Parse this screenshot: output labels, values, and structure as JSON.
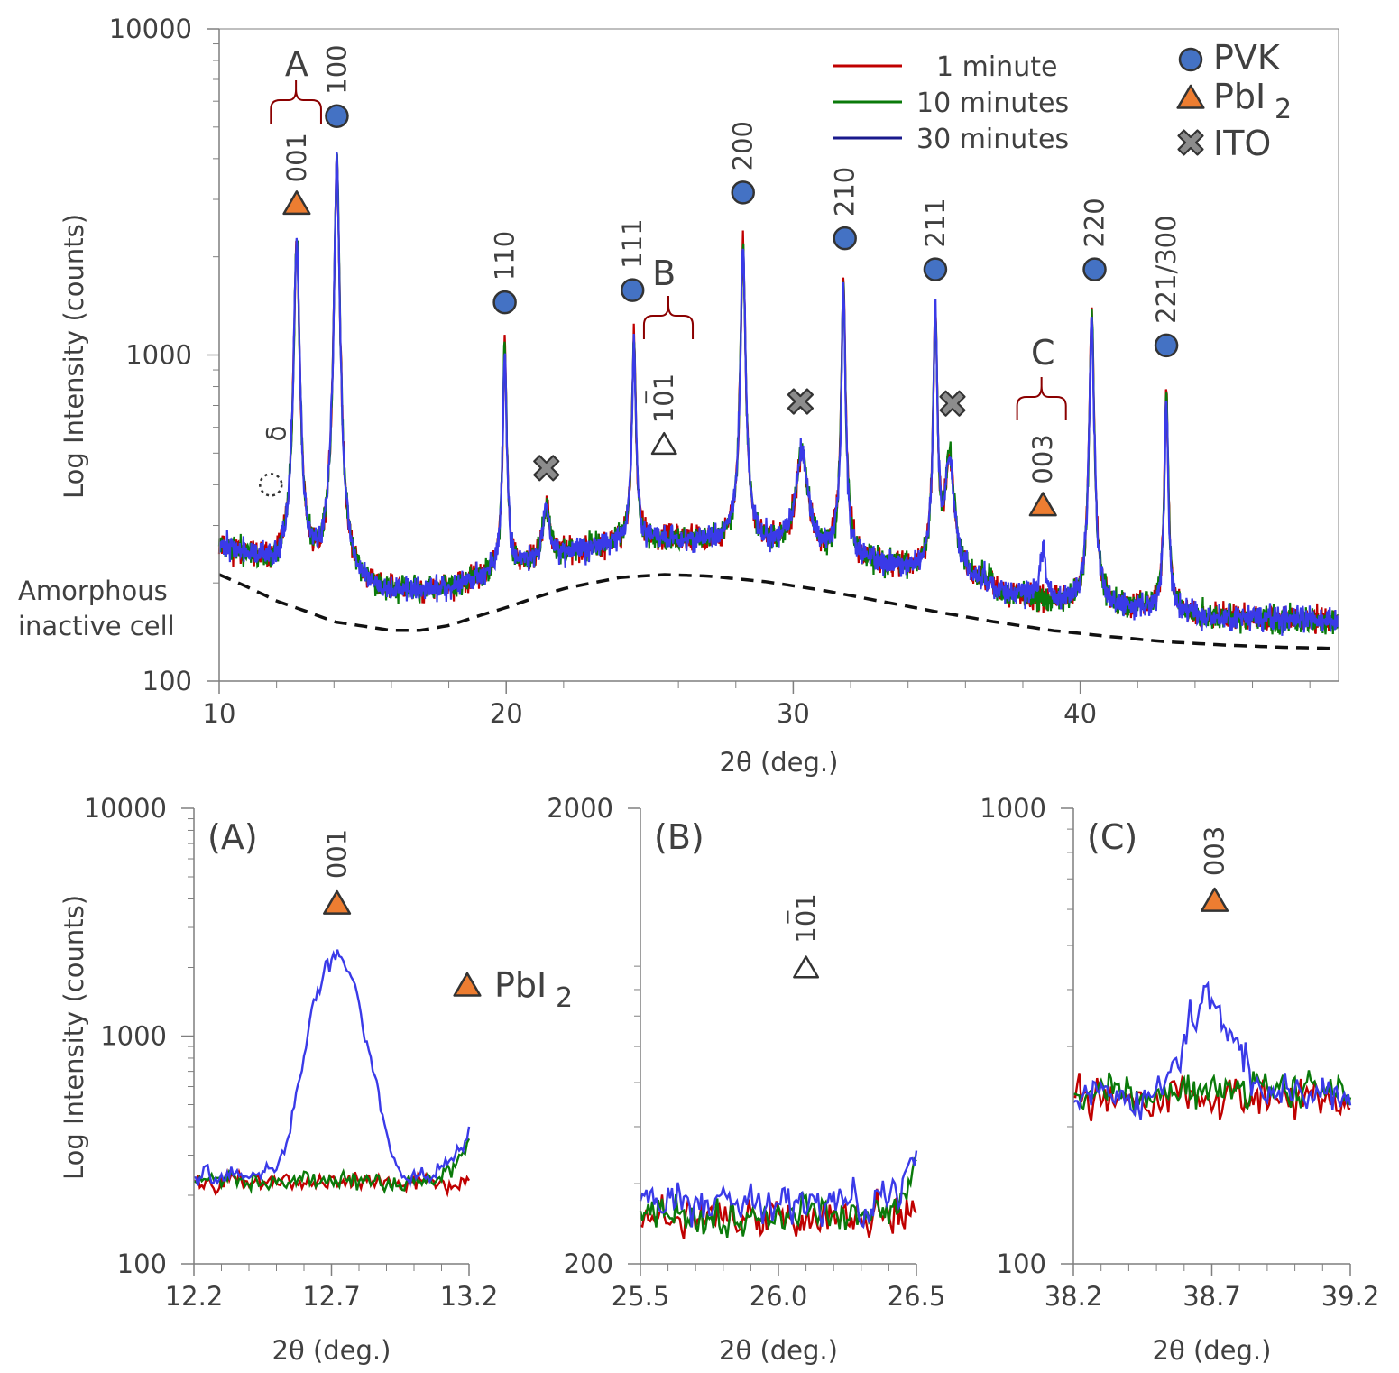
{
  "colors": {
    "red": "#c00000",
    "green": "#0a7a0a",
    "blue": "#3a3ae8",
    "pvk_fill": "#4472c4",
    "pbi2_fill": "#ed7d31",
    "ito_fill": "#8c8c8c",
    "bracket": "#8b0000",
    "axis": "#7f7f7f",
    "text": "#404040"
  },
  "markers": {
    "pvk_icon": "filled-circle-icon",
    "pbi2_icon": "filled-triangle-icon",
    "ito_icon": "cross-icon"
  },
  "chart_data": [
    {
      "type": "line",
      "panel": "main",
      "xlabel": "2θ (deg.)",
      "ylabel": "Log Intensity (counts)",
      "xlim": [
        10,
        49
      ],
      "ylim": [
        100,
        10000
      ],
      "yscale": "log",
      "xticks": [
        "10",
        "20",
        "30",
        "40"
      ],
      "yticks": [
        "100",
        "1000",
        "10000"
      ],
      "legend": {
        "placement": "top-right",
        "series": [
          "1 minute",
          "10 minutes",
          "30 minutes"
        ],
        "markers": [
          "PVK",
          "PbI",
          "2",
          "ITO"
        ]
      },
      "series": [
        {
          "name": "1 minute",
          "color": "#c00000"
        },
        {
          "name": "10 minutes",
          "color": "#0a7a0a"
        },
        {
          "name": "30 minutes",
          "color": "#3a3ae8"
        }
      ],
      "peaks": [
        {
          "x": 12.7,
          "y": 2250,
          "r": 1.0,
          "g": 1.0,
          "b": 1.0,
          "w": 0.08
        },
        {
          "x": 14.1,
          "y": 4100,
          "r": 1.0,
          "g": 1.0,
          "b": 1.0,
          "w": 0.07
        },
        {
          "x": 19.95,
          "y": 1050,
          "r": 1.0,
          "g": 1.02,
          "b": 0.98,
          "w": 0.06
        },
        {
          "x": 21.4,
          "y": 350,
          "r": 1.0,
          "g": 1.0,
          "b": 1.0,
          "w": 0.12
        },
        {
          "x": 24.45,
          "y": 1150,
          "r": 1.02,
          "g": 0.97,
          "b": 0.97,
          "w": 0.06
        },
        {
          "x": 28.25,
          "y": 2200,
          "r": 1.0,
          "g": 1.0,
          "b": 1.0,
          "w": 0.07
        },
        {
          "x": 30.3,
          "y": 500,
          "r": 1.0,
          "g": 1.0,
          "b": 1.0,
          "w": 0.22
        },
        {
          "x": 31.75,
          "y": 1700,
          "r": 1.02,
          "g": 0.98,
          "b": 0.92,
          "w": 0.06
        },
        {
          "x": 34.95,
          "y": 1380,
          "r": 1.0,
          "g": 1.0,
          "b": 1.0,
          "w": 0.06
        },
        {
          "x": 35.45,
          "y": 480,
          "r": 1.0,
          "g": 1.02,
          "b": 0.98,
          "w": 0.16
        },
        {
          "x": 38.7,
          "y": 260,
          "r": 0.0,
          "g": 0.0,
          "b": 1.0,
          "w": 0.1
        },
        {
          "x": 40.4,
          "y": 1330,
          "r": 1.0,
          "g": 0.98,
          "b": 0.97,
          "w": 0.07
        },
        {
          "x": 43.0,
          "y": 760,
          "r": 1.02,
          "g": 1.0,
          "b": 0.93,
          "w": 0.06
        }
      ],
      "amorphous_curve": {
        "x": [
          10,
          12,
          14,
          16,
          17,
          18,
          20,
          22,
          24,
          25.5,
          27,
          29,
          31,
          33,
          35,
          37,
          39,
          41,
          43,
          45,
          47,
          48.8
        ],
        "y": [
          212,
          176,
          152,
          143,
          143,
          148,
          168,
          192,
          208,
          212,
          210,
          202,
          190,
          176,
          163,
          152,
          143,
          137,
          132,
          129,
          127,
          126
        ]
      },
      "labels": {
        "A": "A",
        "B": "B",
        "C": "C",
        "delta": "δ",
        "amorphous": [
          "Amorphous",
          "inactive cell"
        ]
      },
      "reflections": [
        {
          "label": "001",
          "phase": "PbI2",
          "x": 12.7,
          "y": 2900
        },
        {
          "label": "100",
          "phase": "PVK",
          "x": 14.1,
          "y": 5400
        },
        {
          "label": "110",
          "phase": "PVK",
          "x": 19.95,
          "y": 1450
        },
        {
          "label": "111",
          "phase": "PVK",
          "x": 24.4,
          "y": 1580
        },
        {
          "label": "101",
          "phase": "PbI2-empty",
          "x": 25.5,
          "y": 530
        },
        {
          "label": "200",
          "phase": "PVK",
          "x": 28.25,
          "y": 3150
        },
        {
          "label": "210",
          "phase": "PVK",
          "x": 31.8,
          "y": 2280
        },
        {
          "label": "211",
          "phase": "PVK",
          "x": 34.95,
          "y": 1830
        },
        {
          "label": "220",
          "phase": "PVK",
          "x": 40.5,
          "y": 1830
        },
        {
          "label": "221/300",
          "phase": "PVK",
          "x": 43.0,
          "y": 1070
        },
        {
          "label": "003",
          "phase": "PbI2",
          "x": 38.7,
          "y": 345
        }
      ],
      "ito": [
        {
          "x": 21.4,
          "y": 450
        },
        {
          "x": 30.25,
          "y": 720
        },
        {
          "x": 35.55,
          "y": 710
        }
      ],
      "delta_marker": {
        "x": 11.8,
        "y": 400
      }
    },
    {
      "type": "line",
      "panel": "A",
      "title": "(A)",
      "xlabel": "2θ (deg.)",
      "ylabel": "Log Intensity (counts)",
      "xlim": [
        12.2,
        13.2
      ],
      "ylim": [
        100,
        10000
      ],
      "yscale": "log",
      "xticks": [
        "12.2",
        "12.7",
        "13.2"
      ],
      "yticks": [
        "100",
        "1000",
        "10000"
      ],
      "reflection": {
        "label": "001",
        "phase": "PbI2",
        "x": 12.72,
        "y": 3800
      },
      "legend_marker": {
        "label": "PbI",
        "sub": "2"
      },
      "series": [
        {
          "name": "1 minute",
          "color": "#c00000",
          "base": 230,
          "peak": 0,
          "center": 12.72,
          "width": 0.07
        },
        {
          "name": "10 minutes",
          "color": "#0a7a0a",
          "base": 232,
          "peak": 0,
          "center": 12.72,
          "width": 0.07,
          "rise_end": 340
        },
        {
          "name": "30 minutes",
          "color": "#3a3ae8",
          "base": 245,
          "peak": 2050,
          "center": 12.72,
          "width": 0.075,
          "rise_end": 380
        }
      ]
    },
    {
      "type": "line",
      "panel": "B",
      "title": "(B)",
      "xlabel": "2θ (deg.)",
      "xlim": [
        25.5,
        26.5
      ],
      "ylim": [
        200,
        2000
      ],
      "yscale": "log",
      "xticks": [
        "25.5",
        "26.0",
        "26.5"
      ],
      "yticks": [
        "200",
        "2000"
      ],
      "reflection": {
        "label": "101",
        "phase": "PbI2-empty",
        "x": 26.1,
        "y": 890
      },
      "series": [
        {
          "name": "1 minute",
          "color": "#c00000",
          "base": 252,
          "rise_end": 270
        },
        {
          "name": "10 minutes",
          "color": "#0a7a0a",
          "base": 255,
          "rise_end": 330
        },
        {
          "name": "30 minutes",
          "color": "#3a3ae8",
          "base": 272,
          "rise_end": 345
        }
      ]
    },
    {
      "type": "line",
      "panel": "C",
      "title": "(C)",
      "xlabel": "2θ (deg.)",
      "xlim": [
        38.2,
        39.2
      ],
      "ylim": [
        100,
        1000
      ],
      "yscale": "log",
      "xticks": [
        "38.2",
        "38.7",
        "39.2"
      ],
      "yticks": [
        "100",
        "1000"
      ],
      "reflection": {
        "label": "003",
        "phase": "PbI2",
        "x": 38.71,
        "y": 625
      },
      "series": [
        {
          "name": "1 minute",
          "color": "#c00000",
          "base": 232
        },
        {
          "name": "10 minutes",
          "color": "#0a7a0a",
          "base": 238
        },
        {
          "name": "30 minutes",
          "color": "#3a3ae8",
          "base": 232,
          "peak": 150,
          "center": 38.7,
          "width": 0.08
        }
      ]
    }
  ]
}
